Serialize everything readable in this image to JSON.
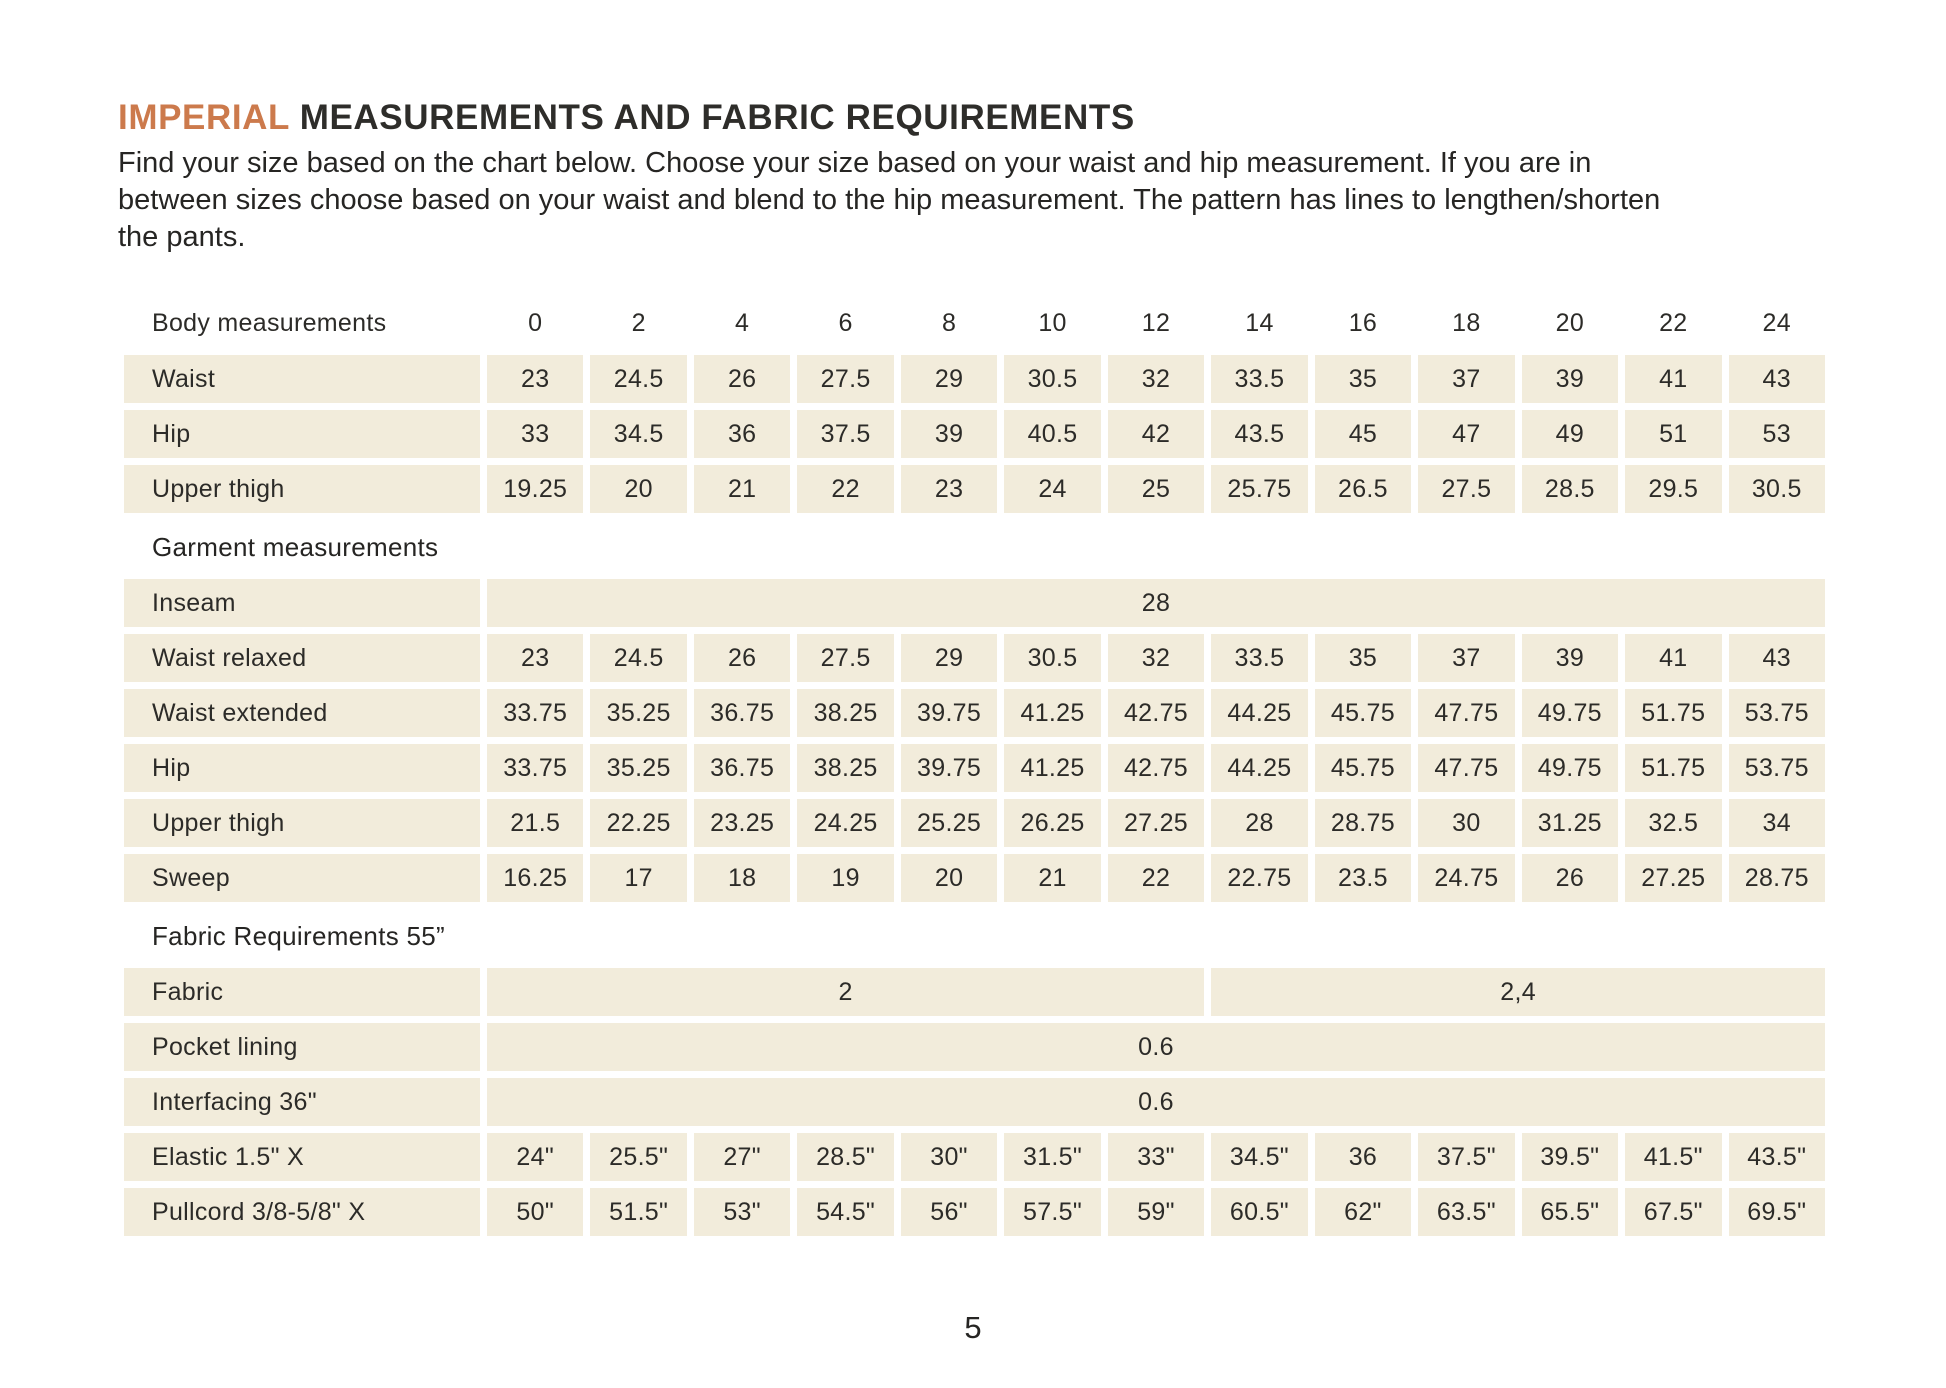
{
  "page": {
    "title_highlight": "IMPERIAL",
    "title_rest": " MEASUREMENTS AND FABRIC REQUIREMENTS",
    "intro_lines": [
      "Find your size based on the chart below. Choose your size based on your waist and hip measurement. If you are in",
      "between sizes choose based on your waist and blend to the hip measurement. The pattern has lines to lengthen/shorten",
      "the pants."
    ],
    "page_number": "5"
  },
  "colors": {
    "accent_orange": "#cc7a4c",
    "cell_beige": "#f2ecdb",
    "text_dark": "#2c2b28"
  },
  "table": {
    "header": {
      "label": "Body measurements",
      "sizes": [
        "0",
        "2",
        "4",
        "6",
        "8",
        "10",
        "12",
        "14",
        "16",
        "18",
        "20",
        "22",
        "24"
      ]
    },
    "sections": [
      {
        "heading": "",
        "rows": [
          {
            "label": "Waist",
            "cells": [
              {
                "v": "23"
              },
              {
                "v": "24.5"
              },
              {
                "v": "26"
              },
              {
                "v": "27.5"
              },
              {
                "v": "29"
              },
              {
                "v": "30.5"
              },
              {
                "v": "32"
              },
              {
                "v": "33.5"
              },
              {
                "v": "35"
              },
              {
                "v": "37"
              },
              {
                "v": "39"
              },
              {
                "v": "41"
              },
              {
                "v": "43"
              }
            ]
          },
          {
            "label": "Hip",
            "cells": [
              {
                "v": "33"
              },
              {
                "v": "34.5"
              },
              {
                "v": "36"
              },
              {
                "v": "37.5"
              },
              {
                "v": "39"
              },
              {
                "v": "40.5"
              },
              {
                "v": "42"
              },
              {
                "v": "43.5"
              },
              {
                "v": "45"
              },
              {
                "v": "47"
              },
              {
                "v": "49"
              },
              {
                "v": "51"
              },
              {
                "v": "53"
              }
            ]
          },
          {
            "label": "Upper thigh",
            "cells": [
              {
                "v": "19.25"
              },
              {
                "v": "20"
              },
              {
                "v": "21"
              },
              {
                "v": "22"
              },
              {
                "v": "23"
              },
              {
                "v": "24"
              },
              {
                "v": "25"
              },
              {
                "v": "25.75"
              },
              {
                "v": "26.5"
              },
              {
                "v": "27.5"
              },
              {
                "v": "28.5"
              },
              {
                "v": "29.5"
              },
              {
                "v": "30.5"
              }
            ]
          }
        ]
      },
      {
        "heading": "Garment measurements",
        "rows": [
          {
            "label": "Inseam",
            "cells": [
              {
                "v": "28",
                "span": 13
              }
            ]
          },
          {
            "label": "Waist relaxed",
            "cells": [
              {
                "v": "23"
              },
              {
                "v": "24.5"
              },
              {
                "v": "26"
              },
              {
                "v": "27.5"
              },
              {
                "v": "29"
              },
              {
                "v": "30.5"
              },
              {
                "v": "32"
              },
              {
                "v": "33.5"
              },
              {
                "v": "35"
              },
              {
                "v": "37"
              },
              {
                "v": "39"
              },
              {
                "v": "41"
              },
              {
                "v": "43"
              }
            ]
          },
          {
            "label": "Waist extended",
            "cells": [
              {
                "v": "33.75"
              },
              {
                "v": "35.25"
              },
              {
                "v": "36.75"
              },
              {
                "v": "38.25"
              },
              {
                "v": "39.75"
              },
              {
                "v": "41.25"
              },
              {
                "v": "42.75"
              },
              {
                "v": "44.25"
              },
              {
                "v": "45.75"
              },
              {
                "v": "47.75"
              },
              {
                "v": "49.75"
              },
              {
                "v": "51.75"
              },
              {
                "v": "53.75"
              }
            ]
          },
          {
            "label": "Hip",
            "cells": [
              {
                "v": "33.75"
              },
              {
                "v": "35.25"
              },
              {
                "v": "36.75"
              },
              {
                "v": "38.25"
              },
              {
                "v": "39.75"
              },
              {
                "v": "41.25"
              },
              {
                "v": "42.75"
              },
              {
                "v": "44.25"
              },
              {
                "v": "45.75"
              },
              {
                "v": "47.75"
              },
              {
                "v": "49.75"
              },
              {
                "v": "51.75"
              },
              {
                "v": "53.75"
              }
            ]
          },
          {
            "label": "Upper thigh",
            "cells": [
              {
                "v": "21.5"
              },
              {
                "v": "22.25"
              },
              {
                "v": "23.25"
              },
              {
                "v": "24.25"
              },
              {
                "v": "25.25"
              },
              {
                "v": "26.25"
              },
              {
                "v": "27.25"
              },
              {
                "v": "28"
              },
              {
                "v": "28.75"
              },
              {
                "v": "30"
              },
              {
                "v": "31.25"
              },
              {
                "v": "32.5"
              },
              {
                "v": "34"
              }
            ]
          },
          {
            "label": "Sweep",
            "cells": [
              {
                "v": "16.25"
              },
              {
                "v": "17"
              },
              {
                "v": "18"
              },
              {
                "v": "19"
              },
              {
                "v": "20"
              },
              {
                "v": "21"
              },
              {
                "v": "22"
              },
              {
                "v": "22.75"
              },
              {
                "v": "23.5"
              },
              {
                "v": "24.75"
              },
              {
                "v": "26"
              },
              {
                "v": "27.25"
              },
              {
                "v": "28.75"
              }
            ]
          }
        ]
      },
      {
        "heading": "Fabric Requirements 55”",
        "rows": [
          {
            "label": "Fabric",
            "cells": [
              {
                "v": "2",
                "span": 7
              },
              {
                "v": "2,4",
                "span": 6
              }
            ]
          },
          {
            "label": "Pocket lining",
            "cells": [
              {
                "v": "0.6",
                "span": 13
              }
            ]
          },
          {
            "label": "Interfacing 36\"",
            "cells": [
              {
                "v": "0.6",
                "span": 13
              }
            ]
          },
          {
            "label": "Elastic  1.5\" X",
            "cells": [
              {
                "v": "24\""
              },
              {
                "v": "25.5\""
              },
              {
                "v": "27\""
              },
              {
                "v": "28.5\""
              },
              {
                "v": "30\""
              },
              {
                "v": "31.5\""
              },
              {
                "v": "33\""
              },
              {
                "v": "34.5\""
              },
              {
                "v": "36"
              },
              {
                "v": "37.5\""
              },
              {
                "v": "39.5\""
              },
              {
                "v": "41.5\""
              },
              {
                "v": "43.5\""
              }
            ]
          },
          {
            "label": "Pullcord 3/8-5/8\" X",
            "cells": [
              {
                "v": "50\""
              },
              {
                "v": "51.5\""
              },
              {
                "v": "53\""
              },
              {
                "v": "54.5\""
              },
              {
                "v": "56\""
              },
              {
                "v": "57.5\""
              },
              {
                "v": "59\""
              },
              {
                "v": "60.5\""
              },
              {
                "v": "62\""
              },
              {
                "v": "63.5\""
              },
              {
                "v": "65.5\""
              },
              {
                "v": "67.5\""
              },
              {
                "v": "69.5\""
              }
            ]
          }
        ]
      }
    ]
  }
}
